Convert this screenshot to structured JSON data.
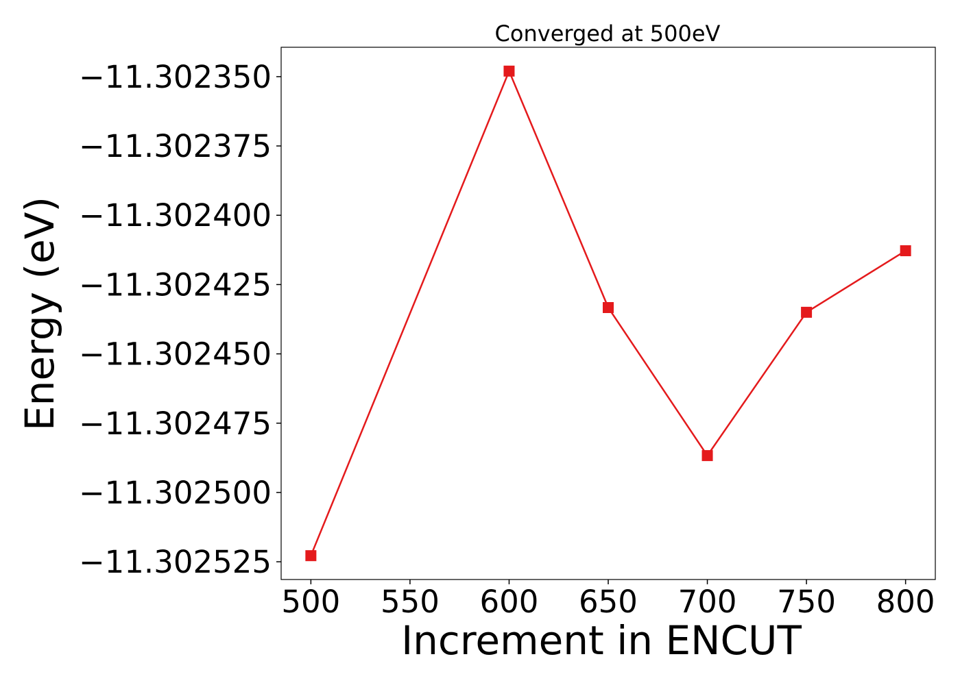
{
  "chart_data": {
    "type": "line",
    "title": "Converged at 500eV",
    "xlabel": "Increment in ENCUT",
    "ylabel": "Energy (eV)",
    "x": [
      500,
      600,
      650,
      700,
      750,
      800
    ],
    "series": [
      {
        "name": "Energy",
        "color": "#e41a1c",
        "marker": "square",
        "values": [
          -11.3025228,
          -11.302348,
          -11.3024333,
          -11.3024867,
          -11.302435,
          -11.3024128
        ]
      }
    ],
    "xlim": [
      485,
      815
    ],
    "xticks": [
      500,
      550,
      600,
      650,
      700,
      750,
      800
    ],
    "ylim": [
      -11.3025314,
      -11.3023394
    ],
    "yticks": [
      {
        "value": -11.30235,
        "label": "−11.302350"
      },
      {
        "value": -11.302375,
        "label": "−11.302375"
      },
      {
        "value": -11.3024,
        "label": "−11.302400"
      },
      {
        "value": -11.302425,
        "label": "−11.302425"
      },
      {
        "value": -11.30245,
        "label": "−11.302450"
      },
      {
        "value": -11.302475,
        "label": "−11.302475"
      },
      {
        "value": -11.3025,
        "label": "−11.302500"
      },
      {
        "value": -11.302525,
        "label": "−11.302525"
      }
    ],
    "grid": false
  }
}
